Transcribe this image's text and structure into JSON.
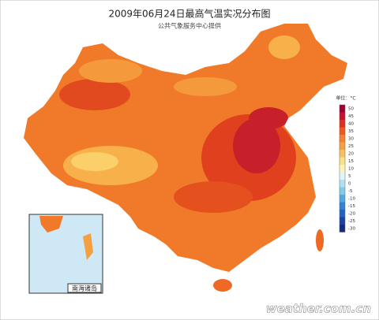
{
  "header": {
    "title": "2009年06月24日最高气温实况分布图",
    "subtitle": "公共气象服务中心提供"
  },
  "legend": {
    "unit": "单位：°C",
    "ticks": [
      50,
      45,
      40,
      35,
      30,
      25,
      20,
      15,
      10,
      5,
      0,
      -5,
      -10,
      -15,
      -20,
      -25,
      -30
    ],
    "colors": [
      "#9e0030",
      "#c4122c",
      "#de2e20",
      "#ee5a1e",
      "#f48232",
      "#f7a040",
      "#f9c060",
      "#fcdf8a",
      "#fff2b8",
      "#e2f4f8",
      "#b2e0f0",
      "#84c8ea",
      "#52a8e0",
      "#3282d0",
      "#2262c0",
      "#1a42a2",
      "#122a82"
    ]
  },
  "inset": {
    "label": "南海诸岛"
  },
  "watermark": "weather.com.cn"
}
